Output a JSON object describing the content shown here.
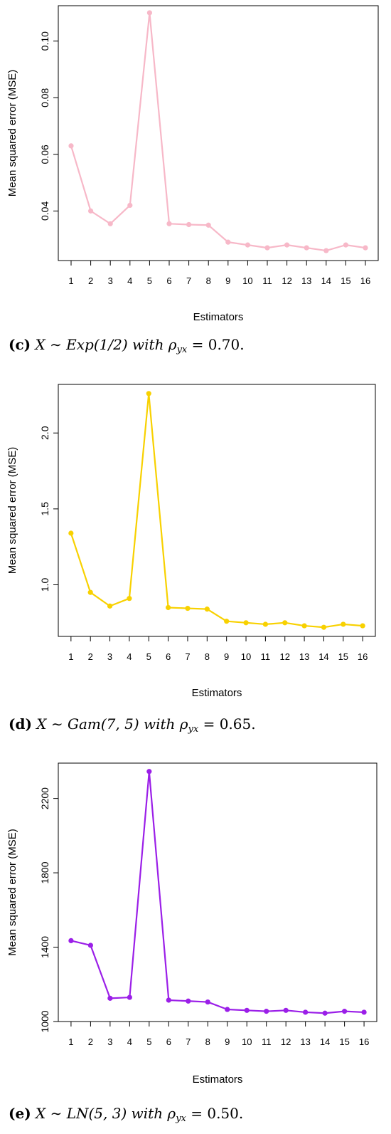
{
  "chart_data": [
    {
      "type": "line",
      "panel_label": "c",
      "caption": {
        "label": "(c)",
        "text": "X ∼ Exp(1/2) with ρ",
        "sub": "yx",
        "tail": " = 0.70."
      },
      "xlabel": "Estimators",
      "ylabel": "Mean squared error (MSE)",
      "color": "#f7b8c8",
      "x": [
        1,
        2,
        3,
        4,
        5,
        6,
        7,
        8,
        9,
        10,
        11,
        12,
        13,
        14,
        15,
        16
      ],
      "values": [
        0.063,
        0.04,
        0.0355,
        0.042,
        0.11,
        0.0355,
        0.0352,
        0.035,
        0.029,
        0.028,
        0.027,
        0.028,
        0.027,
        0.026,
        0.028,
        0.027
      ],
      "ylim": [
        0.0225,
        0.1125
      ],
      "yticks": [
        0.04,
        0.06,
        0.08,
        0.1
      ],
      "ytick_labels": [
        "0.04",
        "0.06",
        "0.08",
        "0.10"
      ]
    },
    {
      "type": "line",
      "panel_label": "d",
      "caption": {
        "label": "(d)",
        "text": " X ∼ Gam(7, 5) with ρ",
        "sub": "yx",
        "tail": " = 0.65."
      },
      "xlabel": "Estimators",
      "ylabel": "Mean squared error (MSE)",
      "color": "#f8d100",
      "x": [
        1,
        2,
        3,
        4,
        5,
        6,
        7,
        8,
        9,
        10,
        11,
        12,
        13,
        14,
        15,
        16
      ],
      "values": [
        1.34,
        0.95,
        0.86,
        0.91,
        2.26,
        0.85,
        0.845,
        0.84,
        0.76,
        0.75,
        0.74,
        0.75,
        0.73,
        0.72,
        0.74,
        0.73
      ],
      "ylim": [
        0.66,
        2.32
      ],
      "yticks": [
        1.0,
        1.5,
        2.0
      ],
      "ytick_labels": [
        "1.0",
        "1.5",
        "2.0"
      ]
    },
    {
      "type": "line",
      "panel_label": "e",
      "caption": {
        "label": "(e)",
        "text": " X ∼ LN(5, 3) with ρ",
        "sub": "yx",
        "tail": " = 0.50."
      },
      "xlabel": "Estimators",
      "ylabel": "Mean squared error (MSE)",
      "color": "#9b1fe8",
      "x": [
        1,
        2,
        3,
        4,
        5,
        6,
        7,
        8,
        9,
        10,
        11,
        12,
        13,
        14,
        15,
        16
      ],
      "values": [
        1435,
        1410,
        1125,
        1130,
        2345,
        1115,
        1110,
        1105,
        1065,
        1060,
        1055,
        1060,
        1050,
        1045,
        1055,
        1050
      ],
      "ylim": [
        1000,
        2390
      ],
      "yticks": [
        1000,
        1400,
        1800,
        2200
      ],
      "ytick_labels": [
        "1000",
        "1400",
        "1800",
        "2200"
      ]
    }
  ]
}
